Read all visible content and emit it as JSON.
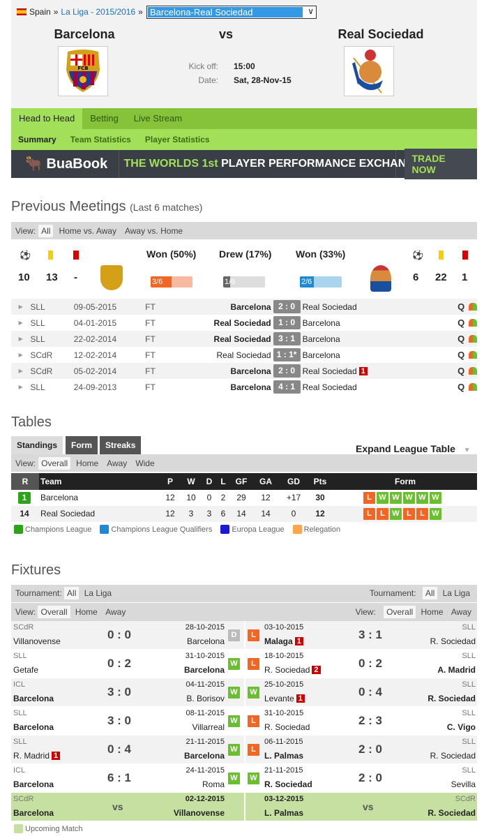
{
  "breadcrumb": {
    "country": "Spain",
    "league": "La Liga - 2015/2016",
    "selected_match": "Barcelona-Real Sociedad"
  },
  "match": {
    "home": "Barcelona",
    "vs": "vs",
    "away": "Real Sociedad",
    "kickoff_label": "Kick off:",
    "kickoff": "15:00",
    "date_label": "Date:",
    "date": "Sat, 28-Nov-15",
    "home_logo_text": "FCB"
  },
  "nav": {
    "main": [
      "Head to Head",
      "Betting",
      "Live Stream"
    ],
    "sub": [
      "Summary",
      "Team Statistics",
      "Player Statistics"
    ]
  },
  "banner": {
    "brand": "BuaBook",
    "tagline_a": "THE WORLDS 1st",
    "tagline_b": "PLAYER PERFORMANCE EXCHANGE",
    "cta": "TRADE NOW"
  },
  "previous": {
    "title": "Previous Meetings",
    "subtitle": "(Last 6 matches)",
    "view_label": "View:",
    "views": [
      "All",
      "Home vs. Away",
      "Away vs. Home"
    ],
    "home_stats": {
      "clean_sheets": "10",
      "yellow": "13",
      "red": "-"
    },
    "away_stats": {
      "clean_sheets": "6",
      "yellow": "22",
      "red": "1"
    },
    "summary": [
      {
        "label": "Won (50%)",
        "frac": "3/6",
        "value": 0.5,
        "color": "#f26522",
        "bg": "#f7b9a0"
      },
      {
        "label": "Drew (17%)",
        "frac": "1/6",
        "value": 0.167,
        "color": "#666",
        "bg": "#ddd"
      },
      {
        "label": "Won (33%)",
        "frac": "2/6",
        "value": 0.333,
        "color": "#1e8ad6",
        "bg": "#a9d3ee"
      }
    ],
    "matches": [
      {
        "comp": "SLL",
        "date": "09-05-2015",
        "status": "FT",
        "home": "Barcelona",
        "score": "2 : 0",
        "away": "Real Sociedad",
        "home_bold": true,
        "red": ""
      },
      {
        "comp": "SLL",
        "date": "04-01-2015",
        "status": "FT",
        "home": "Real Sociedad",
        "score": "1 : 0",
        "away": "Barcelona",
        "home_bold": true,
        "red": ""
      },
      {
        "comp": "SLL",
        "date": "22-02-2014",
        "status": "FT",
        "home": "Real Sociedad",
        "score": "3 : 1",
        "away": "Barcelona",
        "home_bold": true,
        "red": ""
      },
      {
        "comp": "SCdR",
        "date": "12-02-2014",
        "status": "FT",
        "home": "Real Sociedad",
        "score": "1 : 1*",
        "away": "Barcelona",
        "home_bold": false,
        "red": ""
      },
      {
        "comp": "SCdR",
        "date": "05-02-2014",
        "status": "FT",
        "home": "Barcelona",
        "score": "2 : 0",
        "away": "Real Sociedad",
        "home_bold": true,
        "red": "1"
      },
      {
        "comp": "SLL",
        "date": "24-09-2013",
        "status": "FT",
        "home": "Barcelona",
        "score": "4 : 1",
        "away": "Real Sociedad",
        "home_bold": true,
        "red": ""
      }
    ]
  },
  "tables": {
    "title": "Tables",
    "tabs": [
      "Standings",
      "Form",
      "Streaks"
    ],
    "expand": "Expand League Table",
    "view_label": "View:",
    "views": [
      "Overall",
      "Home",
      "Away",
      "Wide"
    ],
    "columns": [
      "R",
      "Team",
      "P",
      "W",
      "D",
      "L",
      "GF",
      "GA",
      "GD",
      "Pts",
      "Form"
    ],
    "rows": [
      {
        "rank": "1",
        "team": "Barcelona",
        "p": "12",
        "w": "10",
        "d": "0",
        "l": "2",
        "gf": "29",
        "ga": "12",
        "gd": "+17",
        "pts": "30",
        "form": [
          "L",
          "W",
          "W",
          "W",
          "W",
          "W"
        ],
        "zone_color": "#2da31a"
      },
      {
        "rank": "14",
        "team": "Real Sociedad",
        "p": "12",
        "w": "3",
        "d": "3",
        "l": "6",
        "gf": "14",
        "ga": "14",
        "gd": "0",
        "pts": "12",
        "form": [
          "L",
          "L",
          "W",
          "L",
          "L",
          "W"
        ],
        "zone_color": ""
      }
    ],
    "legend": [
      {
        "label": "Champions League",
        "color": "#2da31a"
      },
      {
        "label": "Champions League Qualifiers",
        "color": "#1e8ad6"
      },
      {
        "label": "Europa League",
        "color": "#1a1ad6"
      },
      {
        "label": "Relegation",
        "color": "#ffa64d"
      }
    ]
  },
  "fixtures": {
    "title": "Fixtures",
    "tournament_label": "Tournament:",
    "tournaments": [
      "All",
      "La Liga"
    ],
    "view_label": "View:",
    "views": [
      "Overall",
      "Home",
      "Away"
    ],
    "home": [
      {
        "comp": "SCdR",
        "team1": "Villanovense",
        "team1_bold": false,
        "red1": "",
        "score": "0 : 0",
        "date": "28-10-2015",
        "team2": "Barcelona",
        "team2_bold": false,
        "red2": "",
        "result": "D"
      },
      {
        "comp": "SLL",
        "team1": "Getafe",
        "team1_bold": false,
        "red1": "",
        "score": "0 : 2",
        "date": "31-10-2015",
        "team2": "Barcelona",
        "team2_bold": true,
        "red2": "",
        "result": "W"
      },
      {
        "comp": "ICL",
        "team1": "Barcelona",
        "team1_bold": true,
        "red1": "",
        "score": "3 : 0",
        "date": "04-11-2015",
        "team2": "B. Borisov",
        "team2_bold": false,
        "red2": "",
        "result": "W"
      },
      {
        "comp": "SLL",
        "team1": "Barcelona",
        "team1_bold": true,
        "red1": "",
        "score": "3 : 0",
        "date": "08-11-2015",
        "team2": "Villarreal",
        "team2_bold": false,
        "red2": "",
        "result": "W"
      },
      {
        "comp": "SLL",
        "team1": "R. Madrid",
        "team1_bold": false,
        "red1": "1",
        "score": "0 : 4",
        "date": "21-11-2015",
        "team2": "Barcelona",
        "team2_bold": true,
        "red2": "",
        "result": "W"
      },
      {
        "comp": "ICL",
        "team1": "Barcelona",
        "team1_bold": true,
        "red1": "",
        "score": "6 : 1",
        "date": "24-11-2015",
        "team2": "Roma",
        "team2_bold": false,
        "red2": "",
        "result": "W"
      }
    ],
    "away": [
      {
        "comp": "SLL",
        "date": "03-10-2015",
        "team1": "Malaga",
        "team1_bold": true,
        "red1": "1",
        "score": "3 : 1",
        "team2": "R. Sociedad",
        "team2_bold": false,
        "result": "L"
      },
      {
        "comp": "SLL",
        "date": "18-10-2015",
        "team1": "R. Sociedad",
        "team1_bold": false,
        "red1": "2",
        "score": "0 : 2",
        "team2": "A. Madrid",
        "team2_bold": true,
        "result": "L"
      },
      {
        "comp": "SLL",
        "date": "25-10-2015",
        "team1": "Levante",
        "team1_bold": false,
        "red1": "1",
        "score": "0 : 4",
        "team2": "R. Sociedad",
        "team2_bold": true,
        "result": "W"
      },
      {
        "comp": "SLL",
        "date": "31-10-2015",
        "team1": "R. Sociedad",
        "team1_bold": false,
        "red1": "",
        "score": "2 : 3",
        "team2": "C. Vigo",
        "team2_bold": true,
        "result": "L"
      },
      {
        "comp": "SLL",
        "date": "06-11-2015",
        "team1": "L. Palmas",
        "team1_bold": true,
        "red1": "",
        "score": "2 : 0",
        "team2": "R. Sociedad",
        "team2_bold": false,
        "result": "L"
      },
      {
        "comp": "SLL",
        "date": "21-11-2015",
        "team1": "R. Sociedad",
        "team1_bold": true,
        "red1": "",
        "score": "2 : 0",
        "team2": "Sevilla",
        "team2_bold": false,
        "result": "W"
      }
    ],
    "upcoming_home": {
      "comp": "SCdR",
      "team1": "Barcelona",
      "vs": "vs",
      "date": "02-12-2015",
      "team2": "Villanovense"
    },
    "upcoming_away": {
      "comp": "SCdR",
      "date": "03-12-2015",
      "team1": "L. Palmas",
      "vs": "vs",
      "team2": "R. Sociedad"
    },
    "legend": "Upcoming Match",
    "legend_color": "#c5e0a0"
  }
}
